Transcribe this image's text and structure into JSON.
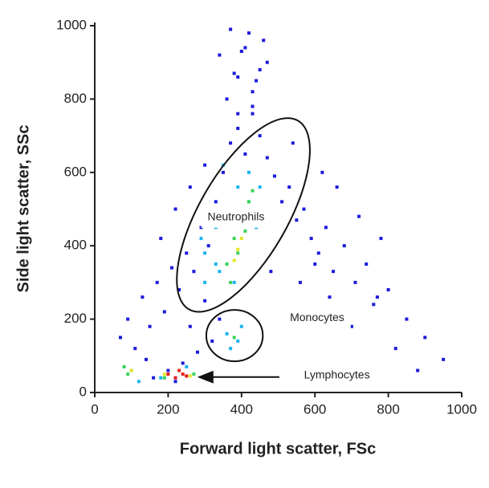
{
  "chart_data": {
    "type": "scatter",
    "xlabel": "Forward light scatter, FSc",
    "ylabel": "Side light scatter, SSc",
    "xlim": [
      0,
      1000
    ],
    "ylim": [
      0,
      1000
    ],
    "xticks": [
      0,
      200,
      400,
      600,
      800,
      1000
    ],
    "yticks": [
      0,
      200,
      400,
      600,
      800,
      1000
    ],
    "series": [
      {
        "color": "#1a1adc",
        "x": [
          70,
          90,
          110,
          130,
          150,
          170,
          190,
          210,
          230,
          250,
          270,
          290,
          310,
          330,
          350,
          370,
          390,
          410,
          430,
          450,
          470,
          490,
          510,
          530,
          550,
          570,
          590,
          610,
          630,
          650,
          680,
          710,
          740,
          770,
          800,
          850,
          900,
          950,
          360,
          380,
          400,
          420,
          440,
          460,
          340,
          390,
          430,
          470,
          370,
          410,
          450,
          390,
          430,
          180,
          220,
          260,
          300,
          240,
          280,
          320,
          200,
          160,
          140,
          520,
          560,
          600,
          640,
          700,
          760,
          820,
          880,
          480,
          540,
          620,
          660,
          720,
          780,
          300,
          340,
          260,
          220
        ],
        "y": [
          150,
          200,
          120,
          260,
          180,
          300,
          220,
          340,
          280,
          380,
          330,
          450,
          400,
          520,
          600,
          680,
          720,
          650,
          760,
          700,
          640,
          590,
          520,
          560,
          470,
          500,
          420,
          380,
          450,
          330,
          400,
          300,
          350,
          260,
          280,
          200,
          150,
          90,
          800,
          870,
          930,
          980,
          850,
          960,
          920,
          760,
          820,
          900,
          990,
          940,
          880,
          860,
          780,
          420,
          500,
          560,
          620,
          80,
          110,
          140,
          60,
          40,
          90,
          220,
          300,
          350,
          260,
          180,
          240,
          120,
          60,
          330,
          680,
          600,
          560,
          480,
          420,
          250,
          200,
          180,
          30
        ]
      },
      {
        "color": "#18b4f0",
        "x": [
          300,
          330,
          360,
          390,
          420,
          450,
          470,
          340,
          380,
          410,
          440,
          350,
          360,
          390,
          400,
          370,
          100,
          120,
          250,
          180,
          290,
          330,
          420,
          300
        ],
        "y": [
          380,
          450,
          500,
          560,
          600,
          560,
          500,
          330,
          300,
          480,
          450,
          620,
          160,
          140,
          180,
          120,
          60,
          30,
          70,
          40,
          420,
          350,
          520,
          300
        ]
      },
      {
        "color": "#3cd25a",
        "x": [
          360,
          380,
          400,
          420,
          370,
          410,
          390,
          430,
          90,
          80,
          190,
          270,
          380
        ],
        "y": [
          350,
          420,
          480,
          520,
          300,
          440,
          380,
          550,
          50,
          70,
          40,
          50,
          150
        ]
      },
      {
        "color": "#e6e628",
        "x": [
          390,
          400,
          380,
          410,
          100,
          190,
          260
        ],
        "y": [
          390,
          420,
          360,
          460,
          60,
          50,
          45
        ]
      },
      {
        "color": "#e61e1e",
        "x": [
          200,
          220,
          240,
          230,
          250
        ],
        "y": [
          50,
          40,
          50,
          60,
          45
        ]
      }
    ],
    "gates": [
      {
        "label": "Neutrophils",
        "cx": 405,
        "cy": 484,
        "rx": 297,
        "ry": 120,
        "angle": -60,
        "label_x": 385,
        "label_y": 477
      },
      {
        "label": "Monocytes",
        "cx": 381,
        "cy": 155,
        "rx": 77,
        "ry": 70,
        "angle": 0,
        "label_x": 606,
        "label_y": 203
      }
    ],
    "arrows": [
      {
        "label": "Lymphocytes",
        "x_from": 503,
        "x_to": 284,
        "y": 42,
        "label_x": 660,
        "label_y": 46
      }
    ]
  }
}
